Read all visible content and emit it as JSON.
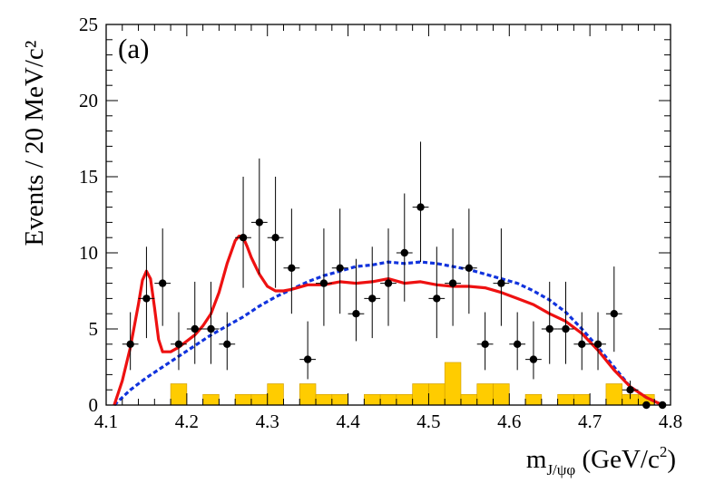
{
  "chart_data": {
    "type": "scatter",
    "title": "",
    "panel_label": "(a)",
    "xlabel": {
      "prefix": "m",
      "subscript": "J/ψφ",
      "suffix": " (GeV/c",
      "sup": "2",
      "close": ")"
    },
    "ylabel": "Events / 20 MeV/c²",
    "xlim": [
      4.1,
      4.8
    ],
    "ylim": [
      0,
      25
    ],
    "x_ticks": [
      "4.1",
      "4.2",
      "4.3",
      "4.4",
      "4.5",
      "4.6",
      "4.7",
      "4.8"
    ],
    "y_ticks": [
      "0",
      "5",
      "10",
      "15",
      "20",
      "25"
    ],
    "grid": false,
    "colors": {
      "data_points": "#000000",
      "fit_curve": "#ee1111",
      "phase_space": "#1133dd",
      "background": "#ffcc00",
      "background_edge": "#cc9900"
    },
    "series": [
      {
        "name": "data",
        "kind": "points_with_errors",
        "x_half_width": 0.01,
        "points": [
          {
            "x": 4.13,
            "y": 4,
            "err_up": 2.1,
            "err_down": 1.7
          },
          {
            "x": 4.15,
            "y": 7,
            "err_up": 3.4,
            "err_down": 2.6
          },
          {
            "x": 4.17,
            "y": 8,
            "err_up": 3.6,
            "err_down": 2.8
          },
          {
            "x": 4.19,
            "y": 4,
            "err_up": 2.1,
            "err_down": 1.7
          },
          {
            "x": 4.21,
            "y": 5,
            "err_up": 3.1,
            "err_down": 2.3
          },
          {
            "x": 4.23,
            "y": 5,
            "err_up": 3.1,
            "err_down": 2.3
          },
          {
            "x": 4.25,
            "y": 4,
            "err_up": 2.1,
            "err_down": 1.7
          },
          {
            "x": 4.27,
            "y": 11,
            "err_up": 4.0,
            "err_down": 3.3
          },
          {
            "x": 4.29,
            "y": 12,
            "err_up": 4.2,
            "err_down": 3.4
          },
          {
            "x": 4.31,
            "y": 11,
            "err_up": 4.0,
            "err_down": 3.3
          },
          {
            "x": 4.33,
            "y": 9,
            "err_up": 3.9,
            "err_down": 3.0
          },
          {
            "x": 4.35,
            "y": 3,
            "err_up": 2.5,
            "err_down": 1.3
          },
          {
            "x": 4.37,
            "y": 8,
            "err_up": 3.6,
            "err_down": 2.8
          },
          {
            "x": 4.39,
            "y": 9,
            "err_up": 3.9,
            "err_down": 3.0
          },
          {
            "x": 4.41,
            "y": 6,
            "err_up": 3.6,
            "err_down": 1.8
          },
          {
            "x": 4.43,
            "y": 7,
            "err_up": 3.4,
            "err_down": 2.6
          },
          {
            "x": 4.45,
            "y": 8,
            "err_up": 3.6,
            "err_down": 2.8
          },
          {
            "x": 4.47,
            "y": 10,
            "err_up": 3.9,
            "err_down": 3.2
          },
          {
            "x": 4.49,
            "y": 13,
            "err_up": 4.3,
            "err_down": 3.6
          },
          {
            "x": 4.51,
            "y": 7,
            "err_up": 3.4,
            "err_down": 2.6
          },
          {
            "x": 4.53,
            "y": 8,
            "err_up": 3.6,
            "err_down": 2.8
          },
          {
            "x": 4.55,
            "y": 9,
            "err_up": 3.9,
            "err_down": 3.0
          },
          {
            "x": 4.57,
            "y": 4,
            "err_up": 2.1,
            "err_down": 1.7
          },
          {
            "x": 4.59,
            "y": 8,
            "err_up": 3.6,
            "err_down": 2.8
          },
          {
            "x": 4.61,
            "y": 4,
            "err_up": 2.1,
            "err_down": 1.7
          },
          {
            "x": 4.63,
            "y": 3,
            "err_up": 2.5,
            "err_down": 1.3
          },
          {
            "x": 4.65,
            "y": 5,
            "err_up": 3.1,
            "err_down": 2.3
          },
          {
            "x": 4.67,
            "y": 5,
            "err_up": 3.1,
            "err_down": 2.3
          },
          {
            "x": 4.69,
            "y": 4,
            "err_up": 2.1,
            "err_down": 1.7
          },
          {
            "x": 4.71,
            "y": 4,
            "err_up": 2.1,
            "err_down": 1.7
          },
          {
            "x": 4.73,
            "y": 6,
            "err_up": 3.1,
            "err_down": 2.5
          },
          {
            "x": 4.75,
            "y": 1,
            "err_up": 0.6,
            "err_down": 0.6
          },
          {
            "x": 4.77,
            "y": 0,
            "err_up": 0.0,
            "err_down": 0.0
          },
          {
            "x": 4.79,
            "y": 0,
            "err_up": 0.0,
            "err_down": 0.0
          }
        ]
      },
      {
        "name": "fit",
        "kind": "line",
        "x": [
          4.11,
          4.12,
          4.13,
          4.14,
          4.145,
          4.15,
          4.155,
          4.16,
          4.165,
          4.17,
          4.18,
          4.19,
          4.2,
          4.21,
          4.22,
          4.23,
          4.24,
          4.25,
          4.26,
          4.265,
          4.27,
          4.275,
          4.28,
          4.29,
          4.3,
          4.31,
          4.32,
          4.33,
          4.35,
          4.37,
          4.39,
          4.41,
          4.43,
          4.45,
          4.47,
          4.49,
          4.51,
          4.53,
          4.55,
          4.57,
          4.59,
          4.61,
          4.63,
          4.65,
          4.67,
          4.69,
          4.71,
          4.73,
          4.75,
          4.77,
          4.79
        ],
        "y": [
          0.0,
          1.6,
          3.8,
          6.6,
          8.2,
          8.8,
          8.3,
          6.4,
          4.3,
          3.5,
          3.5,
          3.8,
          4.2,
          4.6,
          5.2,
          6.0,
          7.4,
          9.3,
          10.8,
          11.1,
          11.0,
          10.4,
          9.7,
          8.6,
          7.8,
          7.5,
          7.5,
          7.6,
          7.9,
          7.9,
          8.1,
          8.0,
          8.1,
          8.3,
          8.0,
          8.1,
          7.9,
          7.8,
          7.8,
          7.7,
          7.4,
          7.0,
          6.6,
          6.0,
          5.5,
          4.7,
          3.6,
          2.3,
          1.2,
          0.5,
          0.0
        ]
      },
      {
        "name": "phase_space",
        "kind": "dashed_line",
        "x": [
          4.11,
          4.13,
          4.15,
          4.17,
          4.19,
          4.21,
          4.23,
          4.25,
          4.27,
          4.29,
          4.31,
          4.33,
          4.35,
          4.37,
          4.39,
          4.41,
          4.43,
          4.45,
          4.47,
          4.49,
          4.51,
          4.53,
          4.55,
          4.57,
          4.59,
          4.61,
          4.63,
          4.65,
          4.67,
          4.69,
          4.71,
          4.73,
          4.75,
          4.77,
          4.79
        ],
        "y": [
          0.0,
          1.0,
          1.8,
          2.5,
          3.2,
          3.9,
          4.6,
          5.2,
          5.8,
          6.5,
          7.1,
          7.6,
          8.1,
          8.5,
          8.8,
          9.1,
          9.2,
          9.4,
          9.3,
          9.4,
          9.3,
          9.1,
          8.9,
          8.6,
          8.3,
          8.0,
          7.5,
          6.9,
          6.1,
          5.0,
          3.8,
          2.5,
          1.2,
          0.5,
          0.0
        ]
      },
      {
        "name": "background",
        "kind": "histogram",
        "bin_width": 0.02,
        "bins": [
          {
            "x": 4.18,
            "y": 1.4
          },
          {
            "x": 4.22,
            "y": 0.7
          },
          {
            "x": 4.26,
            "y": 0.7
          },
          {
            "x": 4.28,
            "y": 0.7
          },
          {
            "x": 4.3,
            "y": 1.4
          },
          {
            "x": 4.34,
            "y": 1.4
          },
          {
            "x": 4.36,
            "y": 0.7
          },
          {
            "x": 4.38,
            "y": 0.7
          },
          {
            "x": 4.42,
            "y": 0.7
          },
          {
            "x": 4.44,
            "y": 0.7
          },
          {
            "x": 4.46,
            "y": 0.7
          },
          {
            "x": 4.48,
            "y": 1.4
          },
          {
            "x": 4.5,
            "y": 1.4
          },
          {
            "x": 4.52,
            "y": 2.8
          },
          {
            "x": 4.54,
            "y": 0.7
          },
          {
            "x": 4.56,
            "y": 1.4
          },
          {
            "x": 4.58,
            "y": 1.4
          },
          {
            "x": 4.62,
            "y": 0.7
          },
          {
            "x": 4.66,
            "y": 0.7
          },
          {
            "x": 4.68,
            "y": 0.7
          },
          {
            "x": 4.72,
            "y": 1.4
          },
          {
            "x": 4.74,
            "y": 0.7
          },
          {
            "x": 4.76,
            "y": 0.7
          }
        ]
      }
    ]
  }
}
